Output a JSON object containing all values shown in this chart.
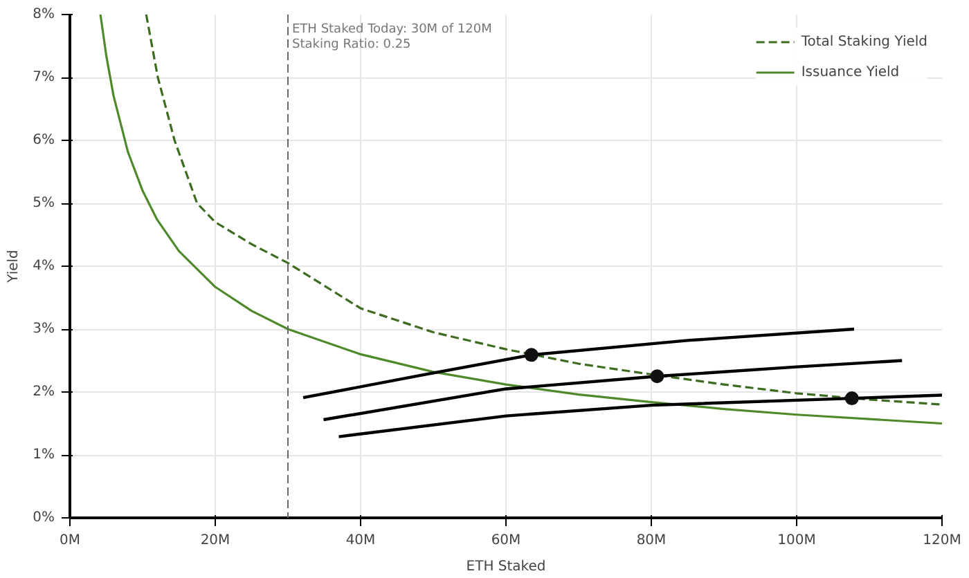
{
  "chart_data": {
    "type": "line",
    "xlabel": "ETH Staked",
    "ylabel": "Yield",
    "xlim": [
      0,
      120
    ],
    "ylim": [
      0,
      8
    ],
    "xticks": [
      {
        "value": 0,
        "label": "0M"
      },
      {
        "value": 20,
        "label": "20M"
      },
      {
        "value": 40,
        "label": "40M"
      },
      {
        "value": 60,
        "label": "60M"
      },
      {
        "value": 80,
        "label": "80M"
      },
      {
        "value": 100,
        "label": "100M"
      },
      {
        "value": 120,
        "label": "120M"
      }
    ],
    "yticks": [
      {
        "value": 0,
        "label": "0%"
      },
      {
        "value": 1,
        "label": "1%"
      },
      {
        "value": 2,
        "label": "2%"
      },
      {
        "value": 3,
        "label": "3%"
      },
      {
        "value": 4,
        "label": "4%"
      },
      {
        "value": 5,
        "label": "5%"
      },
      {
        "value": 6,
        "label": "6%"
      },
      {
        "value": 7,
        "label": "7%"
      },
      {
        "value": 8,
        "label": "8%"
      }
    ],
    "grid": true,
    "legend": "top right",
    "marker": "none",
    "series": [
      {
        "name": "Total Staking Yield",
        "color": "#3d6b1f",
        "line_style": "dashed",
        "x": [
          10.5,
          12.1,
          14.4,
          17.5,
          20,
          25,
          30,
          40,
          50,
          60,
          70,
          80,
          90,
          100,
          110,
          120
        ],
        "values": [
          8,
          7,
          6,
          5,
          4.7,
          4.35,
          4.05,
          3.33,
          2.95,
          2.68,
          2.45,
          2.28,
          2.12,
          1.98,
          1.88,
          1.8
        ]
      },
      {
        "name": "Issuance Yield",
        "color": "#4f8a2a",
        "line_style": "solid",
        "x": [
          4.2,
          5,
          6,
          8,
          10,
          12,
          15,
          20,
          25,
          30,
          40,
          50,
          60,
          70,
          80,
          90,
          100,
          110,
          120
        ],
        "values": [
          8,
          7.35,
          6.71,
          5.81,
          5.2,
          4.74,
          4.24,
          3.67,
          3.29,
          3,
          2.6,
          2.32,
          2.12,
          1.96,
          1.84,
          1.73,
          1.64,
          1.57,
          1.5
        ]
      },
      {
        "color": "#000000",
        "line_style": "solid",
        "x": [
          32.1,
          48.5,
          63.5,
          85,
          107.9
        ],
        "values": [
          1.91,
          2.27,
          2.59,
          2.82,
          3.0
        ]
      },
      {
        "color": "#000000",
        "line_style": "solid",
        "x": [
          34.9,
          60,
          80.8,
          100,
          114.5
        ],
        "values": [
          1.56,
          2.05,
          2.25,
          2.4,
          2.5
        ]
      },
      {
        "color": "#000000",
        "line_style": "solid",
        "x": [
          37,
          60,
          80,
          107.6,
          120
        ],
        "values": [
          1.29,
          1.62,
          1.79,
          1.9,
          1.95
        ]
      },
      {
        "type": "scatter",
        "marker": "circle",
        "color": "#111111",
        "x": [
          63.5,
          80.8,
          107.6
        ],
        "values": [
          2.59,
          2.25,
          1.9
        ]
      }
    ],
    "ref_lines": [
      {
        "axis": "x",
        "value": 30,
        "color": "#666666",
        "line_style": "dashed"
      }
    ],
    "annotations": [
      "ETH Staked Today:  30M of 120M",
      "Staking Ratio:          0.25"
    ]
  }
}
